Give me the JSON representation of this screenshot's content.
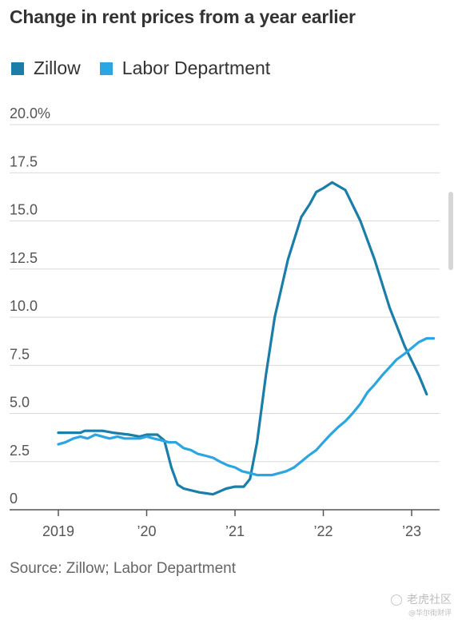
{
  "chart_data": {
    "type": "line",
    "title": "Change in rent prices from a year earlier",
    "xlabel": "",
    "ylabel": "",
    "ylim": [
      0,
      20
    ],
    "xlim": [
      2019,
      2023.33
    ],
    "x_ticks": [
      {
        "value": 2019,
        "label": "2019"
      },
      {
        "value": 2020,
        "label": "’20"
      },
      {
        "value": 2021,
        "label": "’21"
      },
      {
        "value": 2022,
        "label": "’22"
      },
      {
        "value": 2023,
        "label": "’23"
      }
    ],
    "y_ticks": [
      {
        "value": 0,
        "label": "0"
      },
      {
        "value": 2.5,
        "label": "2.5"
      },
      {
        "value": 5,
        "label": "5.0"
      },
      {
        "value": 7.5,
        "label": "7.5"
      },
      {
        "value": 10,
        "label": "10.0"
      },
      {
        "value": 12.5,
        "label": "12.5"
      },
      {
        "value": 15,
        "label": "15.0"
      },
      {
        "value": 17.5,
        "label": "17.5"
      },
      {
        "value": 20,
        "label": "20.0%"
      }
    ],
    "grid": true,
    "legend_position": "top-left",
    "series": [
      {
        "name": "Zillow",
        "color": "#1a7ea8",
        "x": [
          2019.0,
          2019.25,
          2019.3,
          2019.5,
          2019.62,
          2019.8,
          2019.92,
          2020.0,
          2020.12,
          2020.2,
          2020.28,
          2020.35,
          2020.42,
          2020.6,
          2020.75,
          2020.9,
          2021.0,
          2021.1,
          2021.17,
          2021.25,
          2021.35,
          2021.45,
          2021.6,
          2021.75,
          2021.85,
          2021.92,
          2022.0,
          2022.1,
          2022.25,
          2022.42,
          2022.58,
          2022.75,
          2022.92,
          2023.08,
          2023.17
        ],
        "values": [
          4.0,
          4.0,
          4.1,
          4.1,
          4.0,
          3.9,
          3.8,
          3.9,
          3.9,
          3.6,
          2.2,
          1.3,
          1.1,
          0.9,
          0.8,
          1.1,
          1.2,
          1.2,
          1.6,
          3.5,
          7.0,
          10.0,
          13.0,
          15.2,
          15.9,
          16.5,
          16.7,
          17.0,
          16.6,
          15.0,
          13.0,
          10.5,
          8.5,
          7.0,
          6.0
        ]
      },
      {
        "name": "Labor Department",
        "color": "#2ba6e0",
        "x": [
          2019.0,
          2019.08,
          2019.17,
          2019.25,
          2019.33,
          2019.42,
          2019.5,
          2019.58,
          2019.67,
          2019.75,
          2019.83,
          2019.92,
          2020.0,
          2020.08,
          2020.17,
          2020.25,
          2020.33,
          2020.42,
          2020.5,
          2020.58,
          2020.67,
          2020.75,
          2020.83,
          2020.92,
          2021.0,
          2021.08,
          2021.17,
          2021.25,
          2021.33,
          2021.42,
          2021.5,
          2021.58,
          2021.67,
          2021.75,
          2021.83,
          2021.92,
          2022.0,
          2022.08,
          2022.17,
          2022.25,
          2022.33,
          2022.42,
          2022.5,
          2022.58,
          2022.67,
          2022.75,
          2022.83,
          2022.92,
          2023.0,
          2023.08,
          2023.17,
          2023.25
        ],
        "values": [
          3.4,
          3.5,
          3.7,
          3.8,
          3.7,
          3.9,
          3.8,
          3.7,
          3.8,
          3.7,
          3.7,
          3.7,
          3.8,
          3.7,
          3.6,
          3.5,
          3.5,
          3.2,
          3.1,
          2.9,
          2.8,
          2.7,
          2.5,
          2.3,
          2.2,
          2.0,
          1.9,
          1.8,
          1.8,
          1.8,
          1.9,
          2.0,
          2.2,
          2.5,
          2.8,
          3.1,
          3.5,
          3.9,
          4.3,
          4.6,
          5.0,
          5.5,
          6.1,
          6.5,
          7.0,
          7.4,
          7.8,
          8.1,
          8.4,
          8.7,
          8.9,
          8.9
        ]
      }
    ],
    "source": "Source: Zillow; Labor Department"
  },
  "watermark": {
    "main": "老虎社区",
    "sub": "@华尔街财评"
  }
}
